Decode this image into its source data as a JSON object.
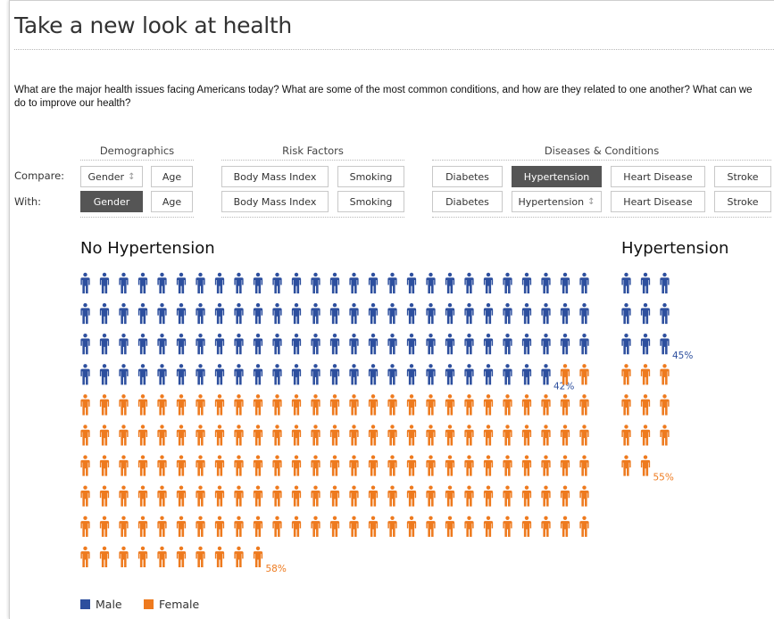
{
  "page": {
    "title": "Take a new look at health",
    "intro": "What are the major health issues facing Americans today? What are some of the most common conditions, and how are they related to one another? What can we do to improve our health?"
  },
  "controls": {
    "groups": {
      "demographics": "Demographics",
      "risk_factors": "Risk Factors",
      "diseases": "Diseases & Conditions"
    },
    "compare_label": "Compare:",
    "with_label": "With:",
    "compare": {
      "gender": "Gender",
      "age": "Age",
      "bmi": "Body Mass Index",
      "smoking": "Smoking",
      "diabetes": "Diabetes",
      "hypertension": "Hypertension",
      "heart_disease": "Heart Disease",
      "stroke": "Stroke"
    },
    "with": {
      "gender": "Gender",
      "age": "Age",
      "bmi": "Body Mass Index",
      "smoking": "Smoking",
      "diabetes": "Diabetes",
      "hypertension": "Hypertension",
      "heart_disease": "Heart Disease",
      "stroke": "Stroke"
    },
    "selected_compare": "hypertension",
    "selected_with": "gender"
  },
  "chart_data": [
    {
      "type": "pictogram",
      "title": "No Hypertension",
      "columns": 27,
      "series": [
        {
          "name": "Male",
          "count": 106,
          "percent_label": "42%",
          "color": "#2d4f9e"
        },
        {
          "name": "Female",
          "count": 147,
          "percent_label": "58%",
          "color": "#ee7a1e"
        }
      ]
    },
    {
      "type": "pictogram",
      "title": "Hypertension",
      "columns": 3,
      "series": [
        {
          "name": "Male",
          "count": 9,
          "percent_label": "45%",
          "color": "#2d4f9e"
        },
        {
          "name": "Female",
          "count": 11,
          "percent_label": "55%",
          "color": "#ee7a1e"
        }
      ]
    }
  ],
  "legend": {
    "male": "Male",
    "female": "Female",
    "male_color": "#2d4f9e",
    "female_color": "#ee7a1e"
  }
}
